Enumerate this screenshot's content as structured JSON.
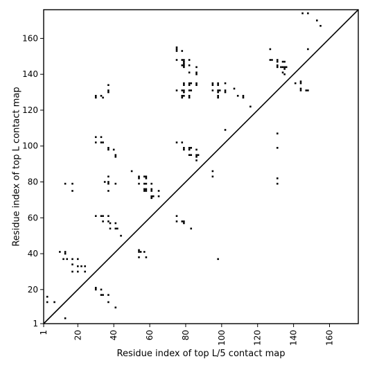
{
  "chart_data": {
    "type": "scatter",
    "xlabel": "Residue index of top L/5 contact map",
    "ylabel": "Residue index of top L contact map",
    "xlim": [
      1,
      176
    ],
    "ylim": [
      1,
      176
    ],
    "xticks": [
      1,
      20,
      40,
      60,
      80,
      100,
      120,
      140,
      160
    ],
    "yticks": [
      1,
      20,
      40,
      60,
      80,
      100,
      120,
      140,
      160
    ],
    "xtick_labels": [
      "1",
      "20",
      "40",
      "60",
      "80",
      "100",
      "120",
      "140",
      "160"
    ],
    "ytick_labels": [
      "1",
      "20",
      "40",
      "60",
      "80",
      "100",
      "120",
      "140",
      "160"
    ],
    "diagonal": true,
    "marker_color": "#000000",
    "points_upper": [
      [
        3,
        16
      ],
      [
        3,
        13
      ],
      [
        7,
        13
      ],
      [
        10,
        41
      ],
      [
        13,
        41
      ],
      [
        13,
        40
      ],
      [
        12,
        37
      ],
      [
        14,
        37
      ],
      [
        13,
        79
      ],
      [
        17,
        79
      ],
      [
        17,
        75
      ],
      [
        17,
        37
      ],
      [
        17,
        34
      ],
      [
        17,
        30
      ],
      [
        20,
        37
      ],
      [
        20,
        33
      ],
      [
        22,
        33
      ],
      [
        24,
        33
      ],
      [
        20,
        30
      ],
      [
        24,
        30
      ],
      [
        13,
        4
      ],
      [
        30,
        128
      ],
      [
        30,
        127
      ],
      [
        33,
        128
      ],
      [
        34,
        127
      ],
      [
        30,
        105
      ],
      [
        33,
        105
      ],
      [
        30,
        102
      ],
      [
        33,
        102
      ],
      [
        34,
        102
      ],
      [
        37,
        99
      ],
      [
        37,
        98
      ],
      [
        40,
        98
      ],
      [
        41,
        95
      ],
      [
        41,
        94
      ],
      [
        37,
        131
      ],
      [
        37,
        130
      ],
      [
        37,
        134
      ],
      [
        35,
        80
      ],
      [
        37,
        80
      ],
      [
        37,
        79
      ],
      [
        37,
        83
      ],
      [
        37,
        75
      ],
      [
        41,
        79
      ],
      [
        30,
        61
      ],
      [
        33,
        61
      ],
      [
        34,
        61
      ],
      [
        37,
        61
      ],
      [
        34,
        58
      ],
      [
        37,
        58
      ],
      [
        38,
        57
      ],
      [
        41,
        57
      ],
      [
        41,
        54
      ],
      [
        42,
        54
      ],
      [
        38,
        54
      ],
      [
        44,
        50
      ],
      [
        30,
        21
      ],
      [
        30,
        20
      ],
      [
        33,
        20
      ],
      [
        33,
        17
      ],
      [
        34,
        17
      ],
      [
        37,
        17
      ],
      [
        37,
        13
      ],
      [
        41,
        10
      ],
      [
        50,
        86
      ],
      [
        54,
        83
      ],
      [
        54,
        82
      ],
      [
        57,
        83
      ],
      [
        58,
        83
      ],
      [
        58,
        82
      ],
      [
        54,
        79
      ],
      [
        57,
        79
      ],
      [
        58,
        79
      ],
      [
        57,
        76
      ],
      [
        58,
        76
      ],
      [
        57,
        75
      ],
      [
        58,
        75
      ],
      [
        61,
        79
      ],
      [
        61,
        76
      ],
      [
        61,
        75
      ],
      [
        65,
        75
      ],
      [
        61,
        72
      ],
      [
        61,
        71
      ],
      [
        62,
        72
      ],
      [
        65,
        72
      ],
      [
        54,
        42
      ],
      [
        54,
        41
      ],
      [
        55,
        41
      ],
      [
        57,
        41
      ],
      [
        54,
        38
      ],
      [
        58,
        38
      ],
      [
        75,
        155
      ],
      [
        75,
        154
      ],
      [
        75,
        153
      ],
      [
        78,
        153
      ],
      [
        75,
        148
      ],
      [
        78,
        148
      ],
      [
        79,
        148
      ],
      [
        79,
        147
      ],
      [
        79,
        146
      ],
      [
        78,
        145
      ],
      [
        79,
        145
      ],
      [
        79,
        144
      ],
      [
        82,
        148
      ],
      [
        82,
        145
      ],
      [
        82,
        141
      ],
      [
        86,
        144
      ],
      [
        86,
        141
      ],
      [
        86,
        140
      ],
      [
        75,
        131
      ],
      [
        78,
        131
      ],
      [
        79,
        131
      ],
      [
        79,
        130
      ],
      [
        79,
        134
      ],
      [
        79,
        135
      ],
      [
        82,
        135
      ],
      [
        83,
        135
      ],
      [
        82,
        134
      ],
      [
        82,
        131
      ],
      [
        83,
        131
      ],
      [
        86,
        135
      ],
      [
        86,
        134
      ],
      [
        78,
        128
      ],
      [
        78,
        127
      ],
      [
        79,
        128
      ],
      [
        82,
        128
      ],
      [
        82,
        127
      ],
      [
        75,
        102
      ],
      [
        78,
        102
      ],
      [
        79,
        99
      ],
      [
        79,
        98
      ],
      [
        82,
        99
      ],
      [
        83,
        99
      ],
      [
        82,
        98
      ],
      [
        82,
        95
      ],
      [
        83,
        95
      ],
      [
        86,
        98
      ],
      [
        86,
        95
      ],
      [
        87,
        95
      ],
      [
        86,
        94
      ],
      [
        86,
        92
      ],
      [
        75,
        61
      ],
      [
        75,
        58
      ],
      [
        78,
        58
      ],
      [
        79,
        58
      ],
      [
        79,
        57
      ],
      [
        83,
        54
      ],
      [
        95,
        135
      ],
      [
        95,
        134
      ],
      [
        98,
        135
      ],
      [
        98,
        134
      ],
      [
        102,
        135
      ],
      [
        95,
        131
      ],
      [
        98,
        131
      ],
      [
        99,
        131
      ],
      [
        98,
        130
      ],
      [
        102,
        131
      ],
      [
        102,
        130
      ],
      [
        98,
        128
      ],
      [
        98,
        127
      ],
      [
        102,
        109
      ],
      [
        95,
        86
      ],
      [
        95,
        83
      ],
      [
        98,
        37
      ],
      [
        107,
        132
      ],
      [
        109,
        128
      ],
      [
        112,
        128
      ],
      [
        112,
        127
      ],
      [
        116,
        122
      ],
      [
        127,
        154
      ],
      [
        127,
        148
      ],
      [
        128,
        148
      ],
      [
        131,
        148
      ],
      [
        131,
        147
      ],
      [
        131,
        145
      ],
      [
        131,
        144
      ],
      [
        134,
        147
      ],
      [
        135,
        147
      ],
      [
        133,
        144
      ],
      [
        134,
        144
      ],
      [
        135,
        144
      ],
      [
        135,
        143
      ],
      [
        136,
        144
      ],
      [
        134,
        141
      ],
      [
        135,
        140
      ],
      [
        131,
        107
      ],
      [
        131,
        99
      ],
      [
        131,
        82
      ],
      [
        131,
        79
      ],
      [
        141,
        135
      ],
      [
        144,
        136
      ],
      [
        144,
        135
      ],
      [
        144,
        132
      ],
      [
        144,
        131
      ],
      [
        147,
        131
      ],
      [
        148,
        131
      ],
      [
        148,
        154
      ],
      [
        145,
        174
      ],
      [
        148,
        174
      ],
      [
        153,
        170
      ],
      [
        155,
        167
      ]
    ]
  }
}
